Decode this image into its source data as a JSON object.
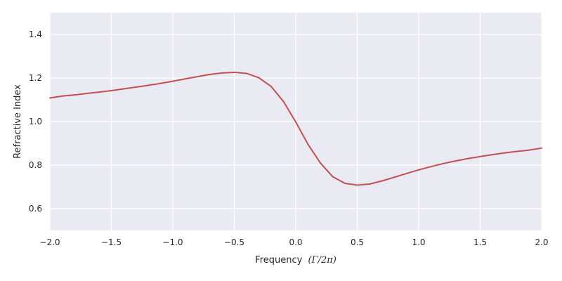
{
  "chart_data": {
    "type": "line",
    "title": "",
    "xlabel": "Frequency",
    "xlabel_math": "(Γ/2π)",
    "ylabel": "Refractive Index",
    "xlim": [
      -2.0,
      2.0
    ],
    "ylim": [
      0.5,
      1.5
    ],
    "x_ticks": [
      -2.0,
      -1.5,
      -1.0,
      -0.5,
      0.0,
      0.5,
      1.0,
      1.5,
      2.0
    ],
    "x_tick_labels": [
      "−2.0",
      "−1.5",
      "−1.0",
      "−0.5",
      "0.0",
      "0.5",
      "1.0",
      "1.5",
      "2.0"
    ],
    "y_ticks": [
      0.6,
      0.8,
      1.0,
      1.2,
      1.4
    ],
    "y_tick_labels": [
      "0.6",
      "0.8",
      "1.0",
      "1.2",
      "1.4"
    ],
    "grid": true,
    "background_color": "#eaeaf2",
    "grid_color": "#ffffff",
    "series": [
      {
        "color": "#c44e52",
        "x": [
          -2.0,
          -1.9,
          -1.8,
          -1.7,
          -1.6,
          -1.5,
          -1.4,
          -1.3,
          -1.2,
          -1.1,
          -1.0,
          -0.9,
          -0.8,
          -0.7,
          -0.6,
          -0.5,
          -0.4,
          -0.3,
          -0.2,
          -0.1,
          0.0,
          0.1,
          0.2,
          0.3,
          0.4,
          0.5,
          0.6,
          0.7,
          0.8,
          0.9,
          1.0,
          1.1,
          1.2,
          1.3,
          1.4,
          1.5,
          1.6,
          1.7,
          1.8,
          1.9,
          2.0
        ],
        "y": [
          1.108,
          1.117,
          1.122,
          1.129,
          1.135,
          1.142,
          1.15,
          1.158,
          1.166,
          1.175,
          1.185,
          1.196,
          1.206,
          1.216,
          1.223,
          1.226,
          1.221,
          1.201,
          1.161,
          1.092,
          0.998,
          0.895,
          0.81,
          0.747,
          0.716,
          0.708,
          0.713,
          0.727,
          0.744,
          0.761,
          0.778,
          0.793,
          0.807,
          0.819,
          0.83,
          0.839,
          0.848,
          0.856,
          0.863,
          0.869,
          0.878
        ]
      }
    ]
  }
}
